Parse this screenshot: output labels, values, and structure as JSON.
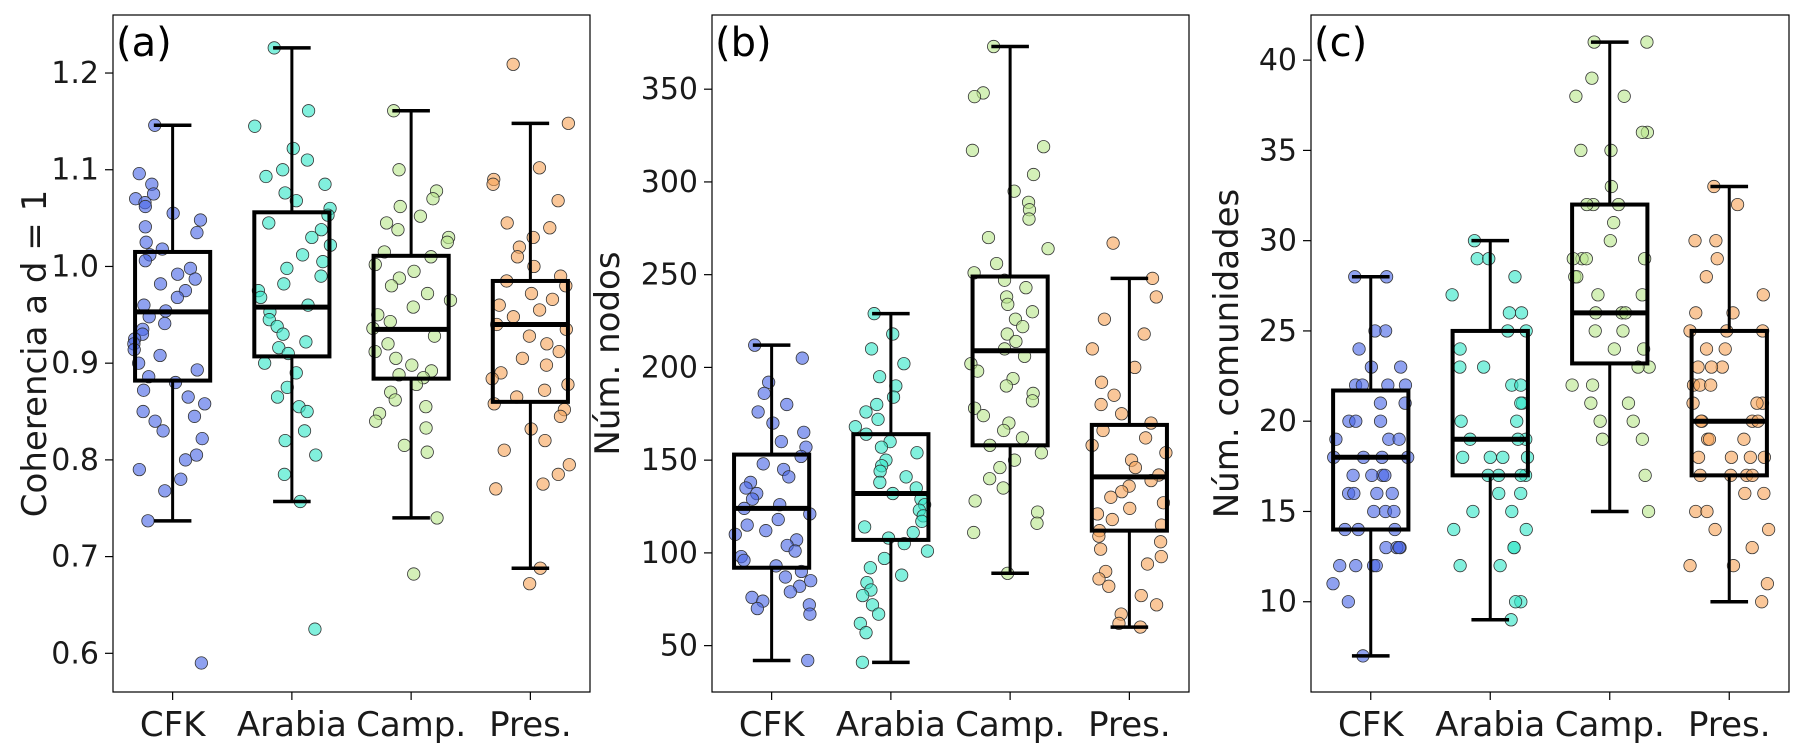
{
  "chart_data": [
    {
      "type": "box",
      "panel_label": "(a)",
      "ylabel": "Coherencia a d = 1",
      "ylim": [
        0.56,
        1.26
      ],
      "yticks": [
        0.6,
        0.7,
        0.8,
        0.9,
        1.0,
        1.1,
        1.2
      ],
      "ytick_decimals": 1,
      "categories": [
        "CFK",
        "Arabia",
        "Camp.",
        "Pres."
      ],
      "colors": [
        "#4b67e6",
        "#33e6c8",
        "#b9e68c",
        "#f7a55a"
      ],
      "boxes": [
        {
          "name": "CFK",
          "whislo": 0.737,
          "q1": 0.882,
          "median": 0.953,
          "q3": 1.015,
          "whishi": 1.146
        },
        {
          "name": "Arabia",
          "whislo": 0.757,
          "q1": 0.907,
          "median": 0.958,
          "q3": 1.056,
          "whishi": 1.226
        },
        {
          "name": "Camp.",
          "whislo": 0.74,
          "q1": 0.884,
          "median": 0.935,
          "q3": 1.011,
          "whishi": 1.161
        },
        {
          "name": "Pres.",
          "whislo": 0.688,
          "q1": 0.86,
          "median": 0.94,
          "q3": 0.985,
          "whishi": 1.148
        }
      ],
      "points": [
        [
          1.146,
          1.096,
          1.085,
          1.075,
          1.07,
          1.066,
          1.062,
          1.055,
          1.048,
          1.041,
          1.035,
          1.025,
          1.018,
          1.012,
          1.006,
          0.998,
          0.992,
          0.987,
          0.982,
          0.975,
          0.968,
          0.96,
          0.954,
          0.948,
          0.941,
          0.935,
          0.93,
          0.925,
          0.92,
          0.914,
          0.908,
          0.9,
          0.893,
          0.886,
          0.88,
          0.872,
          0.865,
          0.858,
          0.85,
          0.845,
          0.84,
          0.83,
          0.822,
          0.805,
          0.8,
          0.79,
          0.78,
          0.768,
          0.737,
          0.59
        ],
        [
          1.226,
          1.161,
          1.145,
          1.122,
          1.11,
          1.1,
          1.093,
          1.085,
          1.076,
          1.068,
          1.06,
          1.053,
          1.045,
          1.038,
          1.03,
          1.022,
          1.012,
          1.005,
          0.998,
          0.99,
          0.982,
          0.975,
          0.968,
          0.96,
          0.953,
          0.945,
          0.938,
          0.93,
          0.922,
          0.916,
          0.91,
          0.9,
          0.89,
          0.875,
          0.865,
          0.855,
          0.85,
          0.83,
          0.82,
          0.805,
          0.785,
          0.757,
          0.625
        ],
        [
          1.161,
          1.1,
          1.078,
          1.07,
          1.062,
          1.052,
          1.045,
          1.038,
          1.03,
          1.025,
          1.015,
          1.01,
          1.002,
          0.995,
          0.988,
          0.98,
          0.972,
          0.965,
          0.958,
          0.95,
          0.943,
          0.936,
          0.928,
          0.92,
          0.912,
          0.905,
          0.898,
          0.892,
          0.888,
          0.885,
          0.878,
          0.87,
          0.862,
          0.855,
          0.848,
          0.84,
          0.833,
          0.815,
          0.808,
          0.74,
          0.682
        ],
        [
          1.209,
          1.148,
          1.102,
          1.09,
          1.085,
          1.068,
          1.045,
          1.04,
          1.03,
          1.02,
          1.01,
          1.0,
          0.99,
          0.985,
          0.98,
          0.972,
          0.966,
          0.96,
          0.955,
          0.948,
          0.94,
          0.935,
          0.928,
          0.92,
          0.912,
          0.905,
          0.898,
          0.89,
          0.884,
          0.878,
          0.872,
          0.865,
          0.858,
          0.852,
          0.845,
          0.832,
          0.82,
          0.81,
          0.795,
          0.785,
          0.775,
          0.77,
          0.688,
          0.672
        ]
      ]
    },
    {
      "type": "box",
      "panel_label": "(b)",
      "ylabel": "Núm. nodos",
      "ylim": [
        25,
        390
      ],
      "yticks": [
        50,
        100,
        150,
        200,
        250,
        300,
        350
      ],
      "ytick_decimals": 0,
      "categories": [
        "CFK",
        "Arabia",
        "Camp.",
        "Pres."
      ],
      "colors": [
        "#4b67e6",
        "#33e6c8",
        "#b9e68c",
        "#f7a55a"
      ],
      "boxes": [
        {
          "name": "CFK",
          "whislo": 42,
          "q1": 92,
          "median": 124,
          "q3": 153,
          "whishi": 212
        },
        {
          "name": "Arabia",
          "whislo": 41,
          "q1": 107,
          "median": 132,
          "q3": 164,
          "whishi": 229
        },
        {
          "name": "Camp.",
          "whislo": 89,
          "q1": 158,
          "median": 209,
          "q3": 249,
          "whishi": 373
        },
        {
          "name": "Pres.",
          "whislo": 60,
          "q1": 112,
          "median": 141,
          "q3": 169,
          "whishi": 248
        }
      ],
      "points": [
        [
          212,
          205,
          192,
          186,
          180,
          176,
          170,
          165,
          160,
          157,
          152,
          148,
          145,
          141,
          138,
          135,
          132,
          129,
          126,
          124,
          121,
          118,
          115,
          112,
          110,
          107,
          104,
          101,
          98,
          96,
          93,
          90,
          87,
          85,
          82,
          79,
          76,
          74,
          72,
          70,
          67,
          42
        ],
        [
          229,
          218,
          210,
          202,
          195,
          190,
          184,
          180,
          176,
          172,
          168,
          164,
          160,
          157,
          154,
          150,
          147,
          144,
          141,
          138,
          135,
          132,
          129,
          126,
          123,
          120,
          117,
          114,
          111,
          108,
          105,
          101,
          97,
          92,
          88,
          84,
          80,
          77,
          72,
          67,
          62,
          57,
          41
        ],
        [
          373,
          348,
          346,
          319,
          317,
          304,
          295,
          289,
          285,
          280,
          270,
          264,
          256,
          251,
          247,
          243,
          238,
          234,
          230,
          226,
          222,
          218,
          214,
          210,
          206,
          202,
          198,
          194,
          190,
          186,
          182,
          178,
          174,
          170,
          166,
          162,
          158,
          154,
          150,
          146,
          140,
          135,
          128,
          122,
          116,
          111,
          89
        ],
        [
          267,
          248,
          238,
          226,
          218,
          210,
          200,
          192,
          185,
          180,
          175,
          170,
          166,
          162,
          158,
          154,
          150,
          146,
          142,
          139,
          136,
          133,
          130,
          127,
          124,
          121,
          118,
          115,
          112,
          109,
          106,
          102,
          98,
          94,
          90,
          86,
          82,
          77,
          72,
          67,
          62,
          60
        ]
      ]
    },
    {
      "type": "box",
      "panel_label": "(c)",
      "ylabel": "Núm. comunidades",
      "ylim": [
        5,
        42.5
      ],
      "yticks": [
        10,
        15,
        20,
        25,
        30,
        35,
        40
      ],
      "ytick_decimals": 0,
      "categories": [
        "CFK",
        "Arabia",
        "Camp.",
        "Pres."
      ],
      "colors": [
        "#4b67e6",
        "#33e6c8",
        "#b9e68c",
        "#f7a55a"
      ],
      "boxes": [
        {
          "name": "CFK",
          "whislo": 7,
          "q1": 14,
          "median": 18,
          "q3": 21.7,
          "whishi": 28
        },
        {
          "name": "Arabia",
          "whislo": 9,
          "q1": 17,
          "median": 19,
          "q3": 25,
          "whishi": 30
        },
        {
          "name": "Camp.",
          "whislo": 15,
          "q1": 23.2,
          "median": 26,
          "q3": 32,
          "whishi": 41
        },
        {
          "name": "Pres.",
          "whislo": 10,
          "q1": 17,
          "median": 20,
          "q3": 25,
          "whishi": 33
        }
      ],
      "points": [
        [
          28,
          28,
          25,
          25,
          24,
          23,
          23,
          22,
          22,
          22,
          22,
          21,
          21,
          20,
          20,
          20,
          19,
          19,
          19,
          18,
          18,
          18,
          18,
          17,
          17,
          17,
          17,
          16,
          16,
          16,
          16,
          15,
          15,
          15,
          14,
          14,
          14,
          13,
          13,
          13,
          13,
          12,
          12,
          12,
          12,
          11,
          10,
          7
        ],
        [
          30,
          29,
          29,
          28,
          27,
          26,
          26,
          25,
          25,
          24,
          23,
          23,
          22,
          22,
          21,
          21,
          20,
          20,
          19,
          19,
          19,
          18,
          18,
          18,
          18,
          17,
          17,
          17,
          17,
          16,
          16,
          15,
          15,
          14,
          14,
          13,
          13,
          12,
          12,
          10,
          10,
          9
        ],
        [
          41,
          41,
          39,
          38,
          38,
          36,
          36,
          35,
          35,
          33,
          32,
          32,
          32,
          31,
          30,
          29,
          29,
          29,
          29,
          28,
          28,
          27,
          27,
          26,
          26,
          26,
          25,
          25,
          24,
          24,
          23,
          23,
          22,
          22,
          21,
          21,
          20,
          20,
          19,
          19,
          17,
          15
        ],
        [
          33,
          32,
          30,
          30,
          29,
          28,
          27,
          26,
          26,
          25,
          25,
          25,
          24,
          24,
          23,
          23,
          23,
          22,
          22,
          22,
          21,
          21,
          21,
          20,
          20,
          20,
          20,
          19,
          19,
          19,
          18,
          18,
          18,
          18,
          17,
          17,
          17,
          17,
          16,
          16,
          15,
          15,
          14,
          14,
          13,
          12,
          12,
          11,
          10
        ]
      ]
    }
  ]
}
